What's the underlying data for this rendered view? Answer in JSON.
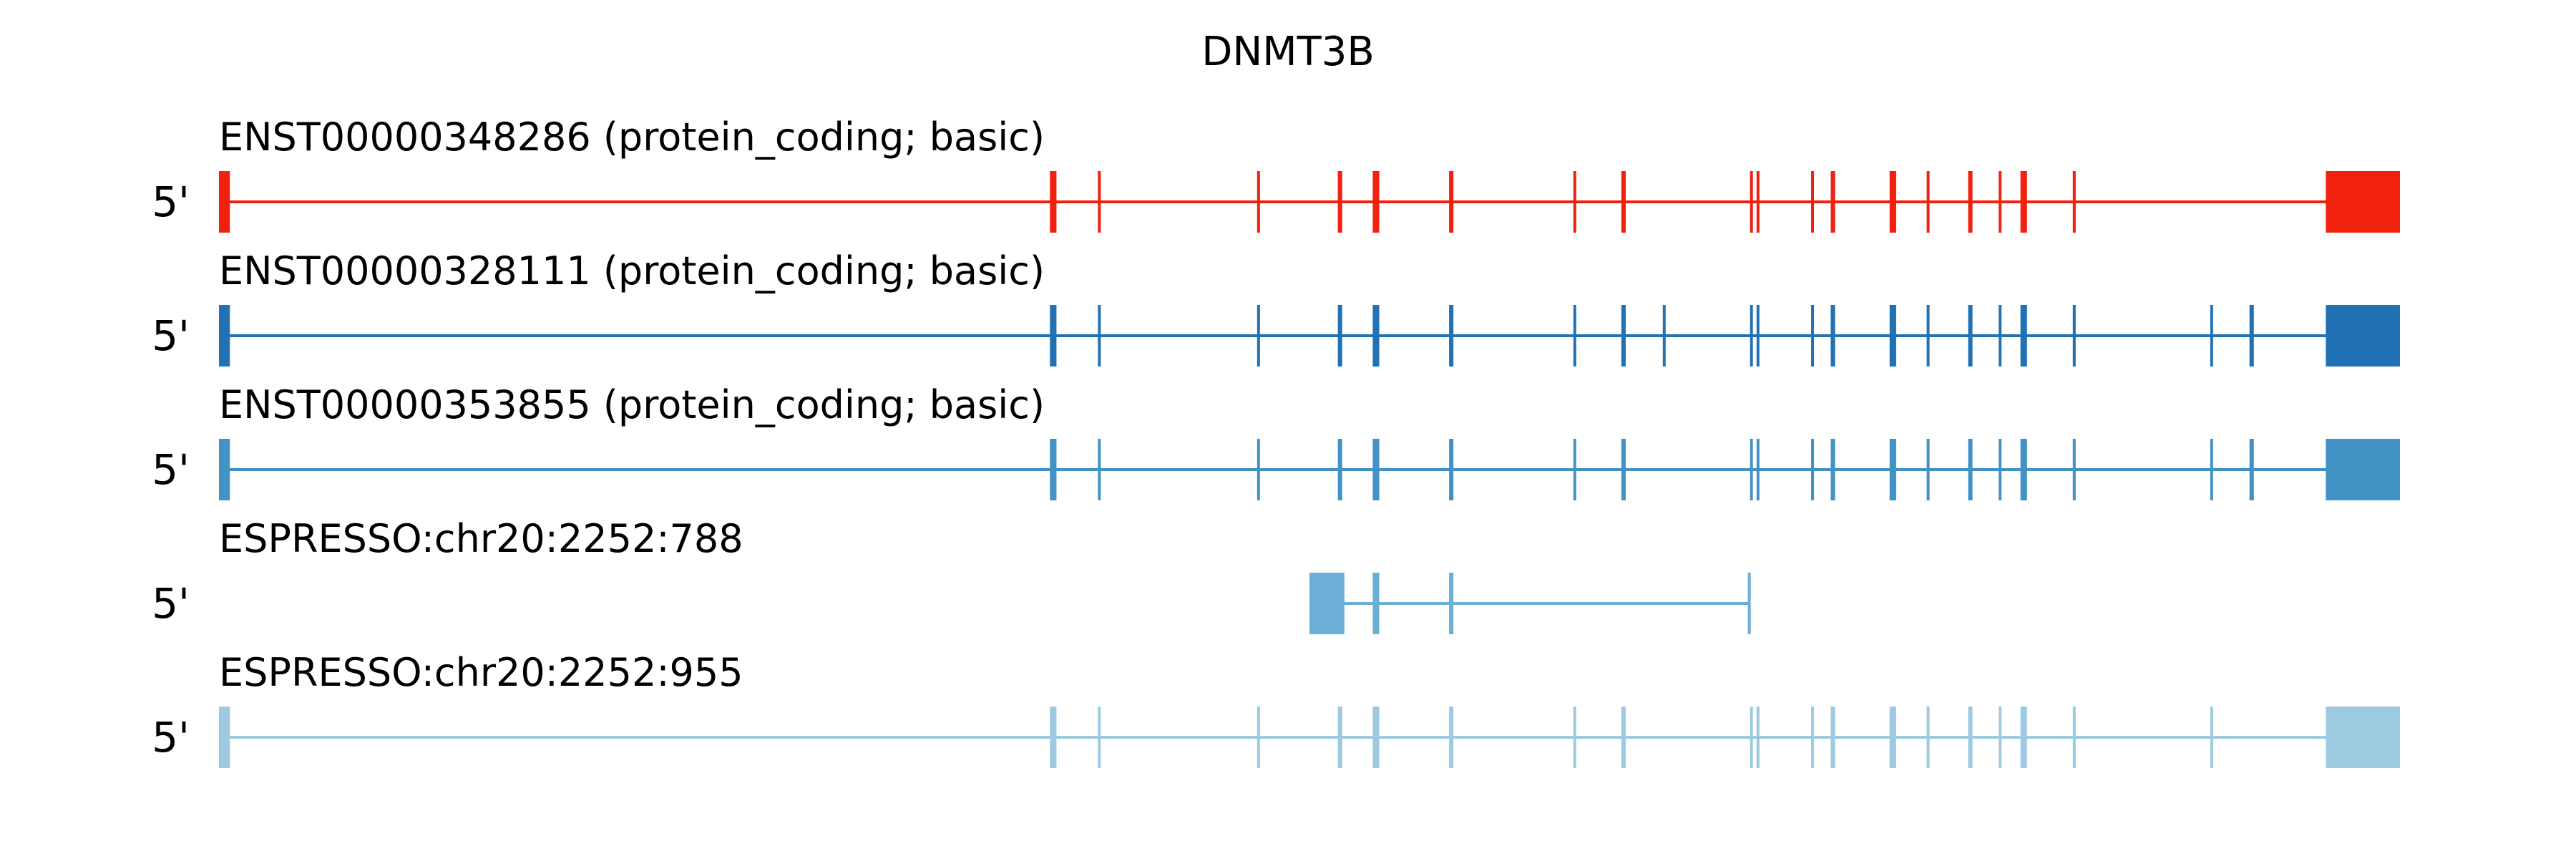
{
  "title": "DNMT3B",
  "five_prime_label": "5'",
  "introns_x": [
    [
      0,
      1
    ]
  ],
  "transcripts": [
    {
      "label": "ENST00000348286 (protein_coding; basic)",
      "color": "#f0210f",
      "span": [
        0.0,
        1.0
      ],
      "exons": [
        [
          0.0,
          0.005
        ],
        [
          0.381,
          0.384
        ],
        [
          0.403,
          0.404
        ],
        [
          0.476,
          0.477
        ],
        [
          0.513,
          0.515
        ],
        [
          0.529,
          0.532
        ],
        [
          0.564,
          0.566
        ],
        [
          0.621,
          0.622
        ],
        [
          0.643,
          0.645
        ],
        [
          0.702,
          0.703
        ],
        [
          0.705,
          0.706
        ],
        [
          0.73,
          0.731
        ],
        [
          0.739,
          0.741
        ],
        [
          0.766,
          0.769
        ],
        [
          0.783,
          0.784
        ],
        [
          0.802,
          0.804
        ],
        [
          0.816,
          0.817
        ],
        [
          0.826,
          0.829
        ],
        [
          0.85,
          0.851
        ],
        [
          0.966,
          1.0
        ]
      ]
    },
    {
      "label": "ENST00000328111 (protein_coding; basic)",
      "color": "#2171b5",
      "span": [
        0.0,
        1.0
      ],
      "exons": [
        [
          0.0,
          0.005
        ],
        [
          0.381,
          0.384
        ],
        [
          0.403,
          0.404
        ],
        [
          0.476,
          0.477
        ],
        [
          0.513,
          0.515
        ],
        [
          0.529,
          0.532
        ],
        [
          0.564,
          0.566
        ],
        [
          0.621,
          0.622
        ],
        [
          0.643,
          0.645
        ],
        [
          0.662,
          0.663
        ],
        [
          0.702,
          0.703
        ],
        [
          0.705,
          0.706
        ],
        [
          0.73,
          0.731
        ],
        [
          0.739,
          0.741
        ],
        [
          0.766,
          0.769
        ],
        [
          0.783,
          0.784
        ],
        [
          0.802,
          0.804
        ],
        [
          0.816,
          0.817
        ],
        [
          0.826,
          0.829
        ],
        [
          0.85,
          0.851
        ],
        [
          0.913,
          0.914
        ],
        [
          0.931,
          0.933
        ],
        [
          0.966,
          1.0
        ]
      ]
    },
    {
      "label": "ENST00000353855 (protein_coding; basic)",
      "color": "#4292c6",
      "span": [
        0.0,
        1.0
      ],
      "exons": [
        [
          0.0,
          0.005
        ],
        [
          0.381,
          0.384
        ],
        [
          0.403,
          0.404
        ],
        [
          0.476,
          0.477
        ],
        [
          0.513,
          0.515
        ],
        [
          0.529,
          0.532
        ],
        [
          0.564,
          0.566
        ],
        [
          0.621,
          0.622
        ],
        [
          0.643,
          0.645
        ],
        [
          0.702,
          0.703
        ],
        [
          0.705,
          0.706
        ],
        [
          0.73,
          0.731
        ],
        [
          0.739,
          0.741
        ],
        [
          0.766,
          0.769
        ],
        [
          0.783,
          0.784
        ],
        [
          0.802,
          0.804
        ],
        [
          0.816,
          0.817
        ],
        [
          0.826,
          0.829
        ],
        [
          0.85,
          0.851
        ],
        [
          0.913,
          0.914
        ],
        [
          0.931,
          0.933
        ],
        [
          0.966,
          1.0
        ]
      ]
    },
    {
      "label": "ESPRESSO:chr20:2252:788",
      "color": "#6baed6",
      "span": [
        0.5,
        0.702
      ],
      "exons": [
        [
          0.5,
          0.516
        ],
        [
          0.529,
          0.532
        ],
        [
          0.564,
          0.566
        ],
        [
          0.701,
          0.702
        ]
      ]
    },
    {
      "label": "ESPRESSO:chr20:2252:955",
      "color": "#9ecae1",
      "span": [
        0.0,
        1.0
      ],
      "exons": [
        [
          0.0,
          0.005
        ],
        [
          0.381,
          0.384
        ],
        [
          0.403,
          0.404
        ],
        [
          0.476,
          0.477
        ],
        [
          0.513,
          0.515
        ],
        [
          0.529,
          0.532
        ],
        [
          0.564,
          0.566
        ],
        [
          0.621,
          0.622
        ],
        [
          0.643,
          0.645
        ],
        [
          0.702,
          0.703
        ],
        [
          0.705,
          0.706
        ],
        [
          0.73,
          0.731
        ],
        [
          0.739,
          0.741
        ],
        [
          0.766,
          0.769
        ],
        [
          0.783,
          0.784
        ],
        [
          0.802,
          0.804
        ],
        [
          0.816,
          0.817
        ],
        [
          0.826,
          0.829
        ],
        [
          0.85,
          0.851
        ],
        [
          0.913,
          0.914
        ],
        [
          0.966,
          1.0
        ]
      ]
    }
  ]
}
